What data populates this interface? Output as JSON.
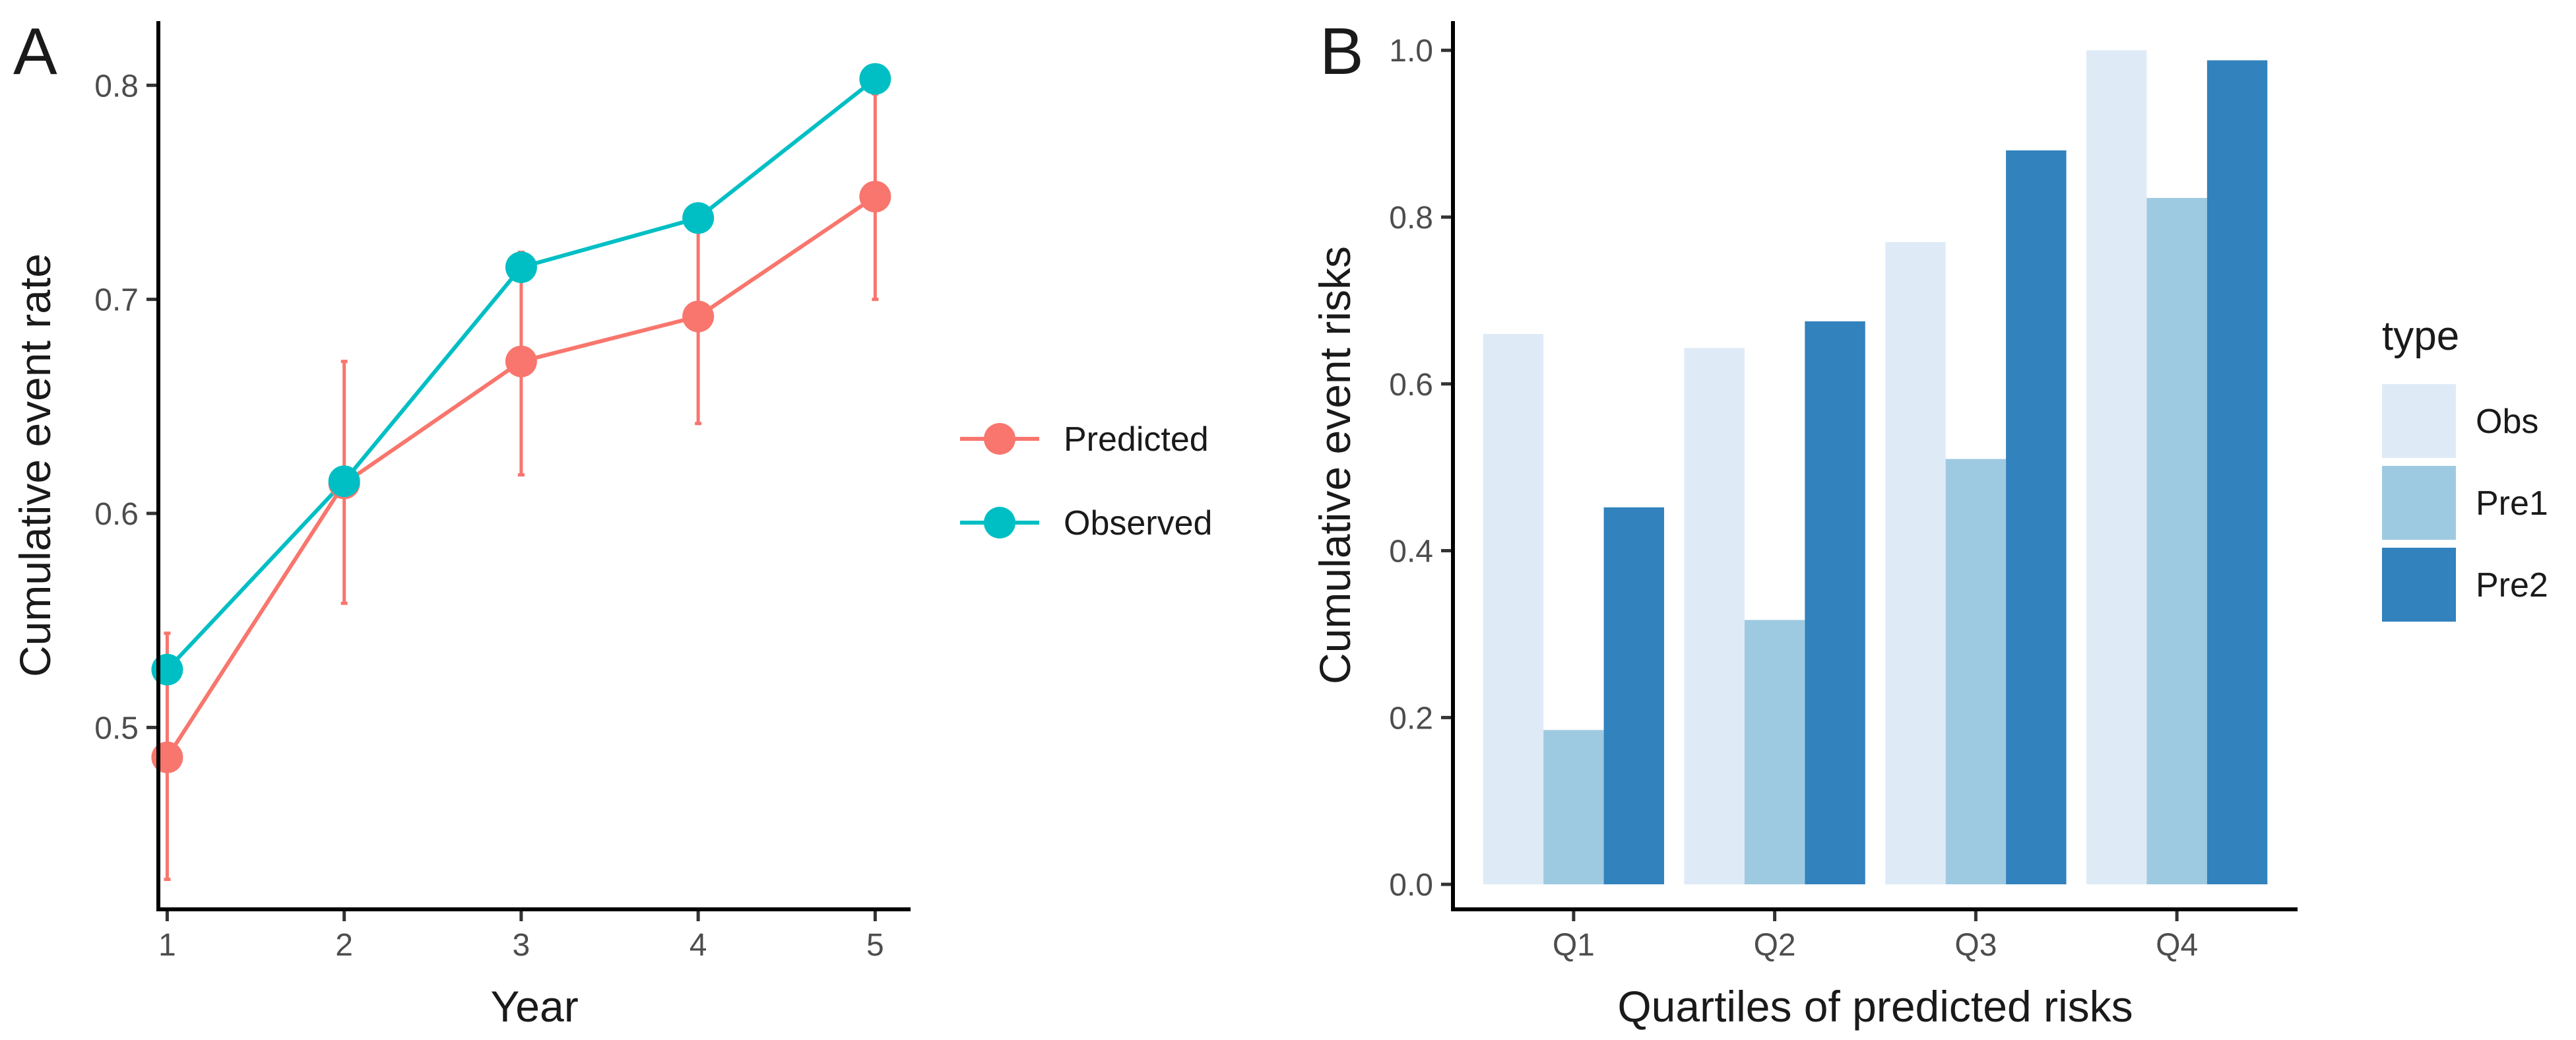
{
  "chart_data": [
    {
      "panel": "A",
      "type": "line",
      "xlabel": "Year",
      "ylabel": "Cumulative event rate",
      "x": [
        1,
        2,
        3,
        4,
        5
      ],
      "xticks": [
        "1",
        "2",
        "3",
        "4",
        "5"
      ],
      "xlim": [
        0.95,
        5.2
      ],
      "ylim": [
        0.415,
        0.83
      ],
      "yticks": [
        "0.5",
        "0.6",
        "0.7",
        "0.8"
      ],
      "grid": false,
      "legend_position": "right",
      "series": [
        {
          "name": "Predicted",
          "color": "#F8766D",
          "values": [
            0.486,
            0.614,
            0.671,
            0.692,
            0.748
          ],
          "error_low": [
            0.429,
            0.558,
            0.618,
            0.642,
            0.7
          ],
          "error_high": [
            0.544,
            0.671,
            0.722,
            0.74,
            0.796
          ]
        },
        {
          "name": "Observed",
          "color": "#00BFC4",
          "values": [
            0.527,
            0.615,
            0.715,
            0.738,
            0.803
          ]
        }
      ]
    },
    {
      "panel": "B",
      "type": "bar",
      "xlabel": "Quartiles of predicted risks",
      "ylabel": "Cumulative event risks",
      "categories": [
        "Q1",
        "Q2",
        "Q3",
        "Q4"
      ],
      "ylim": [
        -0.03,
        1.035
      ],
      "yticks": [
        "0.0",
        "0.2",
        "0.4",
        "0.6",
        "0.8",
        "1.0"
      ],
      "grid": false,
      "legend_title": "type",
      "legend_position": "right",
      "series": [
        {
          "name": "Obs",
          "color": "#DEEBF7",
          "values": [
            0.66,
            0.643,
            0.77,
            1.0
          ]
        },
        {
          "name": "Pre1",
          "color": "#9ECAE1",
          "values": [
            0.185,
            0.317,
            0.51,
            0.823
          ]
        },
        {
          "name": "Pre2",
          "color": "#3182BD",
          "values": [
            0.452,
            0.675,
            0.88,
            0.988
          ]
        }
      ]
    }
  ]
}
